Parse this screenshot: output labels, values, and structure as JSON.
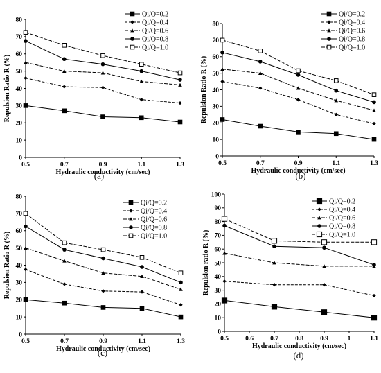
{
  "chart_data": [
    {
      "type": "line",
      "panel_label": "(a)",
      "xlabel": "Hydraulic conductivity (cm/sec)",
      "ylabel": "Repulsion Ratio R (%)",
      "x": [
        0.5,
        0.7,
        0.9,
        1.1,
        1.3
      ],
      "x_ticks": [
        "0.5",
        "0.7",
        "0.9",
        "1.1",
        "1.3"
      ],
      "ylim": [
        0,
        80
      ],
      "y_ticks": [
        "0",
        "10",
        "20",
        "30",
        "40",
        "50",
        "60",
        "70",
        "80"
      ],
      "legend_position": "top-right",
      "series": [
        {
          "name": "Qi/Q=0.2",
          "marker": "square-filled",
          "values": [
            30,
            27,
            23.5,
            23,
            20.5
          ]
        },
        {
          "name": "Qi/Q=0.4",
          "marker": "diamond-filled",
          "values": [
            46,
            41,
            40.5,
            33.5,
            31.5
          ]
        },
        {
          "name": "Qi/Q=0.6",
          "marker": "triangle-filled",
          "values": [
            55,
            50,
            49,
            44,
            42
          ]
        },
        {
          "name": "Qi/Q=0.8",
          "marker": "circle-filled",
          "values": [
            67.5,
            57,
            54,
            50,
            45
          ]
        },
        {
          "name": "Qi/Q=1.0",
          "marker": "square-open",
          "values": [
            72.5,
            65,
            59,
            54,
            49
          ]
        }
      ]
    },
    {
      "type": "line",
      "panel_label": "(b)",
      "xlabel": "Hydraulic conductivity (cm/sec)",
      "ylabel": "Repulsion Ratio R (%)",
      "x": [
        0.5,
        0.7,
        0.9,
        1.1,
        1.3
      ],
      "x_ticks": [
        "0.5",
        "0.7",
        "0.9",
        "1.1",
        "1.3"
      ],
      "ylim": [
        0,
        80
      ],
      "y_ticks": [
        "0",
        "10",
        "20",
        "30",
        "40",
        "50",
        "60",
        "70",
        "80"
      ],
      "legend_position": "top-right",
      "series": [
        {
          "name": "Qi/Q=0.2",
          "marker": "square-filled",
          "values": [
            22,
            18,
            14.5,
            13.5,
            10
          ]
        },
        {
          "name": "Qi/Q=0.4",
          "marker": "diamond-filled",
          "values": [
            45,
            41,
            34,
            25,
            19.5
          ]
        },
        {
          "name": "Qi/Q=0.6",
          "marker": "triangle-filled",
          "values": [
            52.5,
            50,
            41,
            33.5,
            27.5
          ]
        },
        {
          "name": "Qi/Q=0.8",
          "marker": "circle-filled",
          "values": [
            62.5,
            57,
            49,
            39.5,
            32.5
          ]
        },
        {
          "name": "Qi/Q=1.0",
          "marker": "square-open",
          "values": [
            70,
            63.5,
            51.5,
            45.5,
            37
          ]
        }
      ]
    },
    {
      "type": "line",
      "panel_label": "(c)",
      "xlabel": "Hydraulic conductivity (cm/sec)",
      "ylabel": "Repulsion Ratio R (%)",
      "x": [
        0.5,
        0.7,
        0.9,
        1.1,
        1.3
      ],
      "x_ticks": [
        "0.5",
        "0.7",
        "0.9",
        "1.1",
        "1.3"
      ],
      "ylim": [
        0,
        80
      ],
      "y_ticks": [
        "0",
        "10",
        "20",
        "30",
        "40",
        "50",
        "60",
        "70",
        "80"
      ],
      "legend_position": "top-right",
      "series": [
        {
          "name": "Qi/Q=0.2",
          "marker": "square-filled",
          "values": [
            20,
            18,
            15.5,
            15,
            10
          ]
        },
        {
          "name": "Qi/Q=0.4",
          "marker": "diamond-filled",
          "values": [
            37.5,
            29,
            25,
            24.5,
            17
          ]
        },
        {
          "name": "Qi/Q=0.6",
          "marker": "triangle-filled",
          "values": [
            50,
            42.5,
            35.5,
            33.5,
            26
          ]
        },
        {
          "name": "Qi/Q=0.8",
          "marker": "circle-filled",
          "values": [
            62.5,
            49,
            44,
            39,
            30
          ]
        },
        {
          "name": "Qi/Q=1.0",
          "marker": "square-open",
          "values": [
            70,
            53,
            49,
            44.5,
            35.5
          ]
        }
      ]
    },
    {
      "type": "line",
      "panel_label": "(d)",
      "xlabel": "Hydraulic conductivity (cm/sec)",
      "ylabel": "Repulsion ratio R (%)",
      "x": [
        0.5,
        0.7,
        0.9,
        1.1
      ],
      "x_ticks": [
        "0.5",
        "0.6",
        "0.7",
        "0.8",
        "0.9",
        "1",
        "1.1"
      ],
      "x_range": [
        0.5,
        1.1
      ],
      "ylim": [
        0,
        100
      ],
      "y_ticks": [
        "0",
        "10",
        "20",
        "30",
        "40",
        "50",
        "60",
        "70",
        "80",
        "90",
        "100"
      ],
      "legend_position": "top-right",
      "series": [
        {
          "name": "Qi/Q=0.2",
          "marker": "square-filled-large",
          "values": [
            22.5,
            18,
            14,
            10
          ]
        },
        {
          "name": "Qi/Q=0.4",
          "marker": "diamond-filled",
          "values": [
            36.5,
            34,
            34,
            26
          ]
        },
        {
          "name": "Qi/Q=0.6",
          "marker": "triangle-filled",
          "values": [
            57,
            50,
            47.5,
            47.5
          ]
        },
        {
          "name": "Qi/Q=0.8",
          "marker": "circle-filled",
          "values": [
            77,
            62,
            61,
            48.5
          ]
        },
        {
          "name": "Qi/Q=1.0",
          "marker": "square-open-large",
          "values": [
            82,
            66,
            65,
            65
          ]
        }
      ]
    }
  ]
}
